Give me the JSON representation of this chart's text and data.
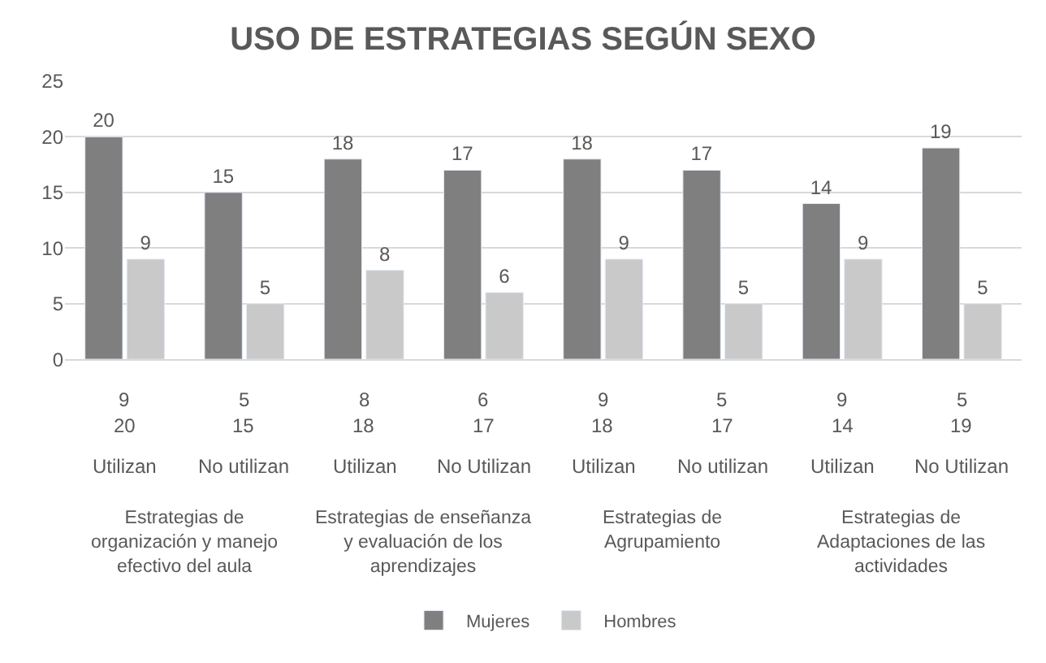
{
  "chart_data": {
    "type": "bar",
    "title": "USO DE ESTRATEGIAS SEGÚN SEXO",
    "categories": [
      "9\n20\nUtilizan",
      "5\n15\nNo utilizan",
      "8\n18\nUtilizan",
      "6\n17\nNo Utilizan",
      "9\n18\nUtilizan",
      "5\n17\nNo utilizan",
      "9\n14\nUtilizan",
      "5\n19\nNo Utilizan"
    ],
    "series": [
      {
        "name": "Mujeres",
        "color": "#7f7f7f",
        "values": [
          20,
          15,
          18,
          17,
          18,
          17,
          14,
          19
        ],
        "value_labels": [
          "20",
          "15",
          "18",
          "17",
          "18",
          "17",
          "14",
          "19"
        ]
      },
      {
        "name": "Hombres",
        "color": "#c9c9c9",
        "values": [
          9,
          5,
          8,
          6,
          9,
          5,
          9,
          5
        ],
        "value_labels": [
          "9",
          "5",
          "8",
          "6",
          "9",
          "5",
          "9",
          "5"
        ]
      }
    ],
    "annotations": [
      "Estrategias de organización y manejo efectivo del aula",
      "Estrategias de enseñanza y evaluación de los aprendizajes",
      "Estrategias de Agrupamiento",
      "Estrategias de Adaptaciones de las actividades"
    ],
    "ylim": [
      0,
      25
    ],
    "yticks": [
      0,
      5,
      10,
      15,
      20,
      25
    ],
    "grid": "y",
    "legend": "bottom"
  }
}
